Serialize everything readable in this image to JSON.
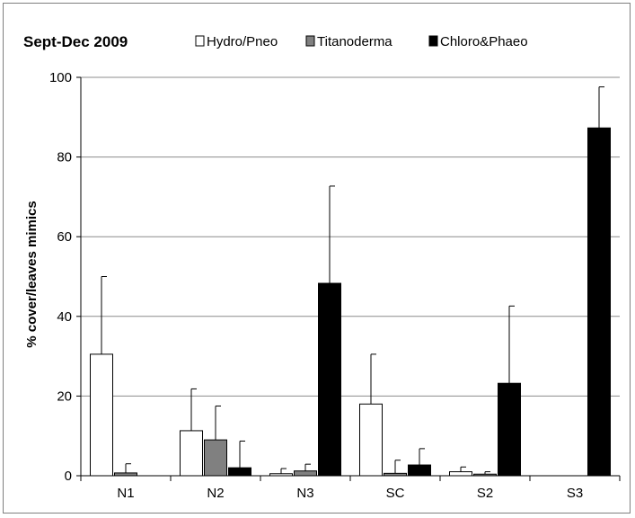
{
  "chart_data": {
    "type": "bar",
    "title": "Sept-Dec 2009",
    "xlabel": "",
    "ylabel": "% cover/leaves mimics",
    "ylim": [
      0,
      100
    ],
    "yticks": [
      0,
      20,
      40,
      60,
      80,
      100
    ],
    "grid": true,
    "legend_position": "top",
    "categories": [
      "N1",
      "N2",
      "N3",
      "SC",
      "S2",
      "S3"
    ],
    "series": [
      {
        "name": "Hydro/Pneo",
        "color": "#ffffff",
        "values": [
          30.5,
          11.3,
          0.5,
          18.0,
          1.0,
          0
        ],
        "errors": [
          19.5,
          10.5,
          1.3,
          12.5,
          1.2,
          0
        ]
      },
      {
        "name": "Titanoderma",
        "color": "#808080",
        "values": [
          0.7,
          9.0,
          1.2,
          0.6,
          0.4,
          0
        ],
        "errors": [
          2.3,
          8.5,
          1.7,
          3.3,
          0.6,
          0
        ]
      },
      {
        "name": "Chloro&Phaeo",
        "color": "#000000",
        "values": [
          0,
          2.0,
          48.3,
          2.7,
          23.2,
          87.3
        ],
        "errors": [
          0,
          6.7,
          24.4,
          4.1,
          19.4,
          10.3
        ]
      }
    ]
  }
}
